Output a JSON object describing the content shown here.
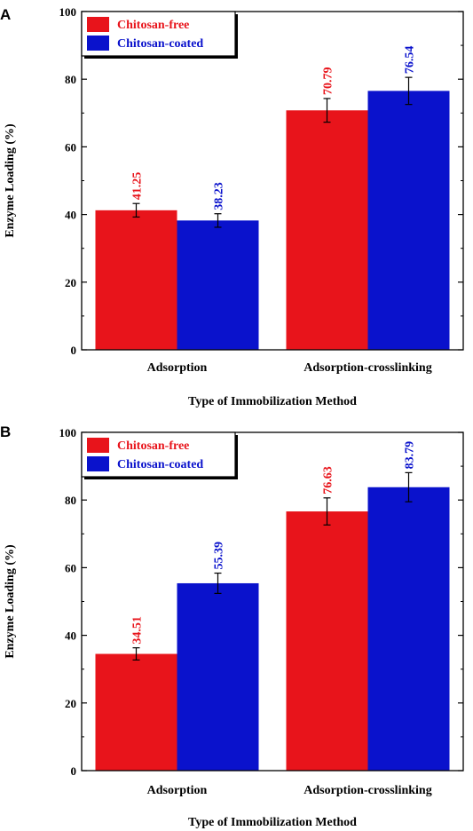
{
  "chart_data": [
    {
      "type": "bar",
      "panel_label": "A",
      "categories": [
        "Adsorption",
        "Adsorption-crosslinking"
      ],
      "series": [
        {
          "name": "Chitosan-free",
          "color": "#e8141b",
          "values": [
            41.25,
            70.79
          ],
          "errors": [
            2.0,
            3.5
          ],
          "labels": [
            "41.25",
            "70.79"
          ]
        },
        {
          "name": "Chitosan-coated",
          "color": "#0a12cc",
          "values": [
            38.23,
            76.54
          ],
          "errors": [
            2.0,
            4.0
          ],
          "labels": [
            "38.23",
            "76.54"
          ]
        }
      ],
      "xlabel": "Type of Immobilization Method",
      "ylabel": "Enzyme Loading (%)",
      "ylim": [
        0,
        100
      ],
      "yticks": [
        0,
        20,
        40,
        60,
        80,
        100
      ],
      "legend_position": "top-left",
      "grid": false
    },
    {
      "type": "bar",
      "panel_label": "B",
      "categories": [
        "Adsorption",
        "Adsorption-crosslinking"
      ],
      "series": [
        {
          "name": "Chitosan-free",
          "color": "#e8141b",
          "values": [
            34.51,
            76.63
          ],
          "errors": [
            1.8,
            4.0
          ],
          "labels": [
            "34.51",
            "76.63"
          ]
        },
        {
          "name": "Chitosan-coated",
          "color": "#0a12cc",
          "values": [
            55.39,
            83.79
          ],
          "errors": [
            3.0,
            4.3
          ],
          "labels": [
            "55.39",
            "83.79"
          ]
        }
      ],
      "xlabel": "Type of Immobilization Method",
      "ylabel": "Enzyme Loading (%)",
      "ylim": [
        0,
        100
      ],
      "yticks": [
        0,
        20,
        40,
        60,
        80,
        100
      ],
      "legend_position": "top-left",
      "grid": false
    }
  ]
}
